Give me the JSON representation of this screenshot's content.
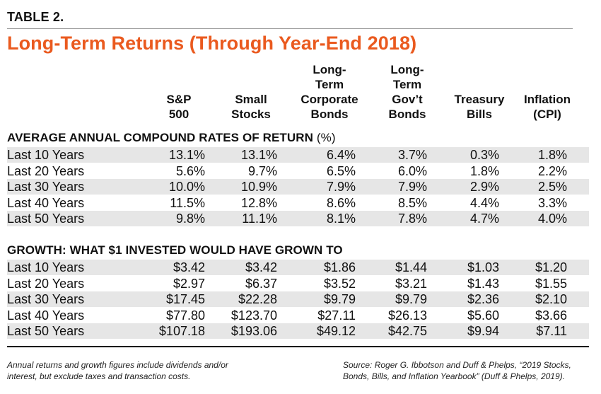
{
  "table_label": "TABLE 2.",
  "title": "Long-Term Returns (Through Year-End 2018)",
  "columns": [
    "S&P\n500",
    "Small\nStocks",
    "Long-\nTerm\nCorporate\nBonds",
    "Long-\nTerm\nGov’t\nBonds",
    "Treasury\nBills",
    "Inflation\n(CPI)"
  ],
  "sections": [
    {
      "heading": "AVERAGE ANNUAL COMPOUND RATES OF RETURN",
      "heading_suffix": "(%)",
      "rows": [
        {
          "label": "Last 10 Years",
          "values": [
            "13.1%",
            "13.1%",
            "6.4%",
            "3.7%",
            "0.3%",
            "1.8%"
          ]
        },
        {
          "label": "Last 20 Years",
          "values": [
            "5.6%",
            "9.7%",
            "6.5%",
            "6.0%",
            "1.8%",
            "2.2%"
          ]
        },
        {
          "label": "Last 30 Years",
          "values": [
            "10.0%",
            "10.9%",
            "7.9%",
            "7.9%",
            "2.9%",
            "2.5%"
          ]
        },
        {
          "label": "Last 40 Years",
          "values": [
            "11.5%",
            "12.8%",
            "8.6%",
            "8.5%",
            "4.4%",
            "3.3%"
          ]
        },
        {
          "label": "Last 50 Years",
          "values": [
            "9.8%",
            "11.1%",
            "8.1%",
            "7.8%",
            "4.7%",
            "4.0%"
          ]
        }
      ]
    },
    {
      "heading": "GROWTH: WHAT $1 INVESTED WOULD HAVE GROWN TO",
      "heading_suffix": "",
      "rows": [
        {
          "label": "Last 10 Years",
          "values": [
            "$3.42",
            "$3.42",
            "$1.86",
            "$1.44",
            "$1.03",
            "$1.20"
          ]
        },
        {
          "label": "Last 20 Years",
          "values": [
            "$2.97",
            "$6.37",
            "$3.52",
            "$3.21",
            "$1.43",
            "$1.55"
          ]
        },
        {
          "label": "Last 30 Years",
          "values": [
            "$17.45",
            "$22.28",
            "$9.79",
            "$9.79",
            "$2.36",
            "$2.10"
          ]
        },
        {
          "label": "Last 40 Years",
          "values": [
            "$77.80",
            "$123.70",
            "$27.11",
            "$26.13",
            "$5.60",
            "$3.66"
          ]
        },
        {
          "label": "Last 50 Years",
          "values": [
            "$107.18",
            "$193.06",
            "$49.12",
            "$42.75",
            "$9.94",
            "$7.11"
          ]
        }
      ]
    }
  ],
  "footnote_left": "Annual returns and growth figures include dividends and/or interest, but exclude taxes and transaction costs.",
  "footnote_right": "Source: Roger G. Ibbotson and Duff & Phelps, “2019 Stocks, Bonds, Bills, and Inflation Yearbook” (Duff & Phelps, 2019).",
  "colors": {
    "title": "#ea5a1f",
    "row_shade": "#e6e6e6",
    "text": "#111111"
  }
}
